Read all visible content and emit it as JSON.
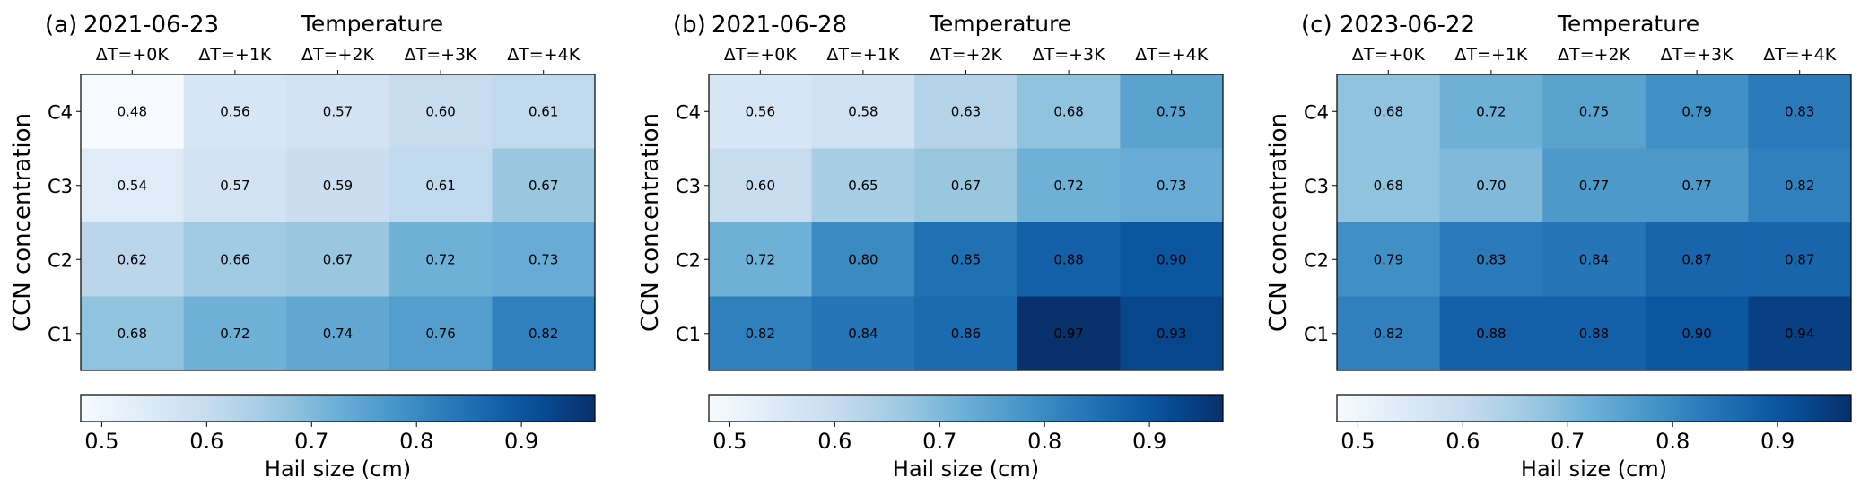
{
  "figure": {
    "top_axis_label": "Temperature",
    "side_axis_label": "CCN concentration",
    "colorbar_label": "Hail size (cm)",
    "colorbar_ticks": [
      "0.5",
      "0.6",
      "0.7",
      "0.8",
      "0.9"
    ]
  },
  "chart_data": [
    {
      "type": "heatmap",
      "panel": "(a)",
      "title": "2021-06-23",
      "x_categories": [
        "ΔT=+0K",
        "ΔT=+1K",
        "ΔT=+2K",
        "ΔT=+3K",
        "ΔT=+4K"
      ],
      "y_categories": [
        "C4",
        "C3",
        "C2",
        "C1"
      ],
      "values": [
        [
          0.48,
          0.56,
          0.57,
          0.6,
          0.61
        ],
        [
          0.54,
          0.57,
          0.59,
          0.61,
          0.67
        ],
        [
          0.62,
          0.66,
          0.67,
          0.72,
          0.73
        ],
        [
          0.68,
          0.72,
          0.74,
          0.76,
          0.82
        ]
      ],
      "xlabel": "Temperature",
      "ylabel": "CCN concentration",
      "colorbar": {
        "label": "Hail size (cm)",
        "range": [
          0.48,
          0.97
        ],
        "ticks": [
          0.5,
          0.6,
          0.7,
          0.8,
          0.9
        ],
        "colormap": "Blues"
      }
    },
    {
      "type": "heatmap",
      "panel": "(b)",
      "title": "2021-06-28",
      "x_categories": [
        "ΔT=+0K",
        "ΔT=+1K",
        "ΔT=+2K",
        "ΔT=+3K",
        "ΔT=+4K"
      ],
      "y_categories": [
        "C4",
        "C3",
        "C2",
        "C1"
      ],
      "values": [
        [
          0.56,
          0.58,
          0.63,
          0.68,
          0.75
        ],
        [
          0.6,
          0.65,
          0.67,
          0.72,
          0.73
        ],
        [
          0.72,
          0.8,
          0.85,
          0.88,
          0.9
        ],
        [
          0.82,
          0.84,
          0.86,
          0.97,
          0.93
        ]
      ],
      "xlabel": "Temperature",
      "ylabel": "CCN concentration",
      "colorbar": {
        "label": "Hail size (cm)",
        "range": [
          0.48,
          0.97
        ],
        "ticks": [
          0.5,
          0.6,
          0.7,
          0.8,
          0.9
        ],
        "colormap": "Blues"
      }
    },
    {
      "type": "heatmap",
      "panel": "(c)",
      "title": "2023-06-22",
      "x_categories": [
        "ΔT=+0K",
        "ΔT=+1K",
        "ΔT=+2K",
        "ΔT=+3K",
        "ΔT=+4K"
      ],
      "y_categories": [
        "C4",
        "C3",
        "C2",
        "C1"
      ],
      "values": [
        [
          0.68,
          0.72,
          0.75,
          0.79,
          0.83
        ],
        [
          0.68,
          0.7,
          0.77,
          0.77,
          0.82
        ],
        [
          0.79,
          0.83,
          0.84,
          0.87,
          0.87
        ],
        [
          0.82,
          0.88,
          0.88,
          0.9,
          0.94
        ]
      ],
      "xlabel": "Temperature",
      "ylabel": "CCN concentration",
      "colorbar": {
        "label": "Hail size (cm)",
        "range": [
          0.48,
          0.97
        ],
        "ticks": [
          0.5,
          0.6,
          0.7,
          0.8,
          0.9
        ],
        "colormap": "Blues"
      }
    }
  ]
}
